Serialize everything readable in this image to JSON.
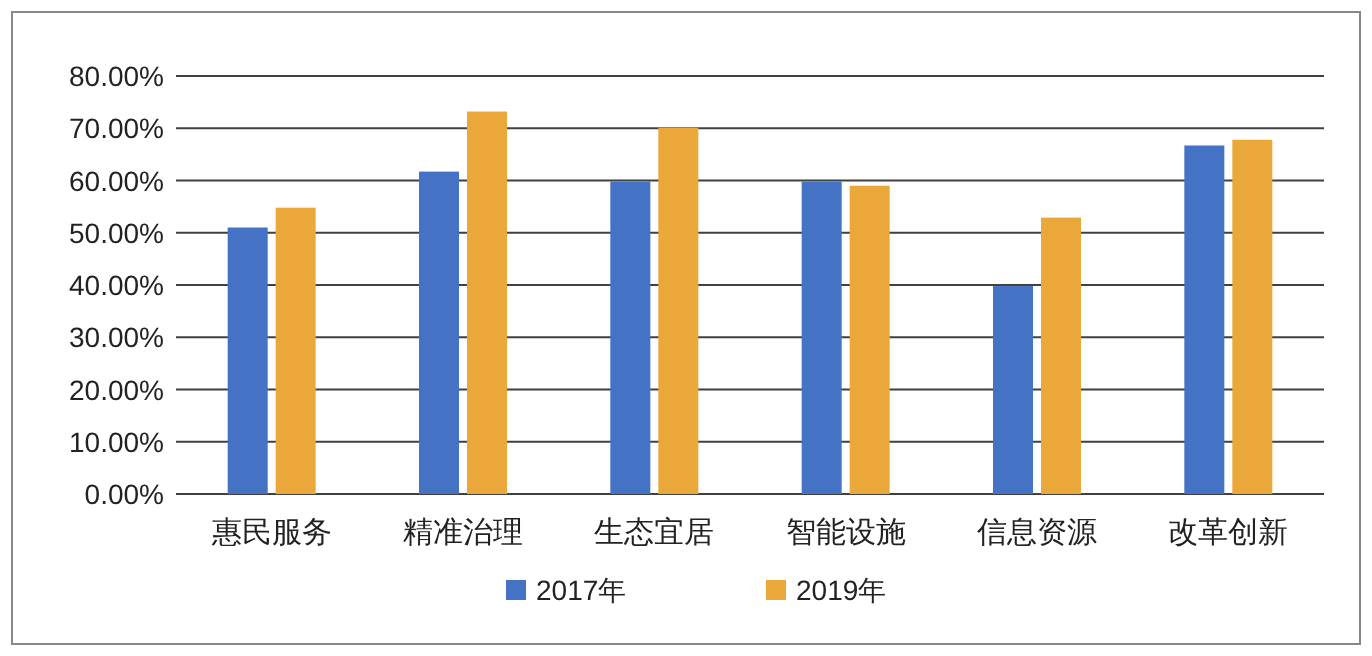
{
  "chart_data": {
    "type": "bar",
    "categories": [
      "惠民服务",
      "精准治理",
      "生态宜居",
      "智能设施",
      "信息资源",
      "改革创新"
    ],
    "series": [
      {
        "name": "2017年",
        "color": "#4472c4",
        "values": [
          51,
          61.7,
          59.8,
          59.8,
          39.8,
          66.7
        ]
      },
      {
        "name": "2019年",
        "color": "#eba83a",
        "values": [
          54.8,
          73.2,
          70.1,
          59,
          52.9,
          67.8
        ]
      }
    ],
    "ylim": [
      0,
      80
    ],
    "yticks": [
      {
        "value": 0,
        "label": "0.00%"
      },
      {
        "value": 10,
        "label": "10.00%"
      },
      {
        "value": 20,
        "label": "20.00%"
      },
      {
        "value": 30,
        "label": "30.00%"
      },
      {
        "value": 40,
        "label": "40.00%"
      },
      {
        "value": 50,
        "label": "50.00%"
      },
      {
        "value": 60,
        "label": "60.00%"
      },
      {
        "value": 70,
        "label": "70.00%"
      },
      {
        "value": 80,
        "label": "80.00%"
      }
    ],
    "grid": "y",
    "legend": "bottom"
  }
}
